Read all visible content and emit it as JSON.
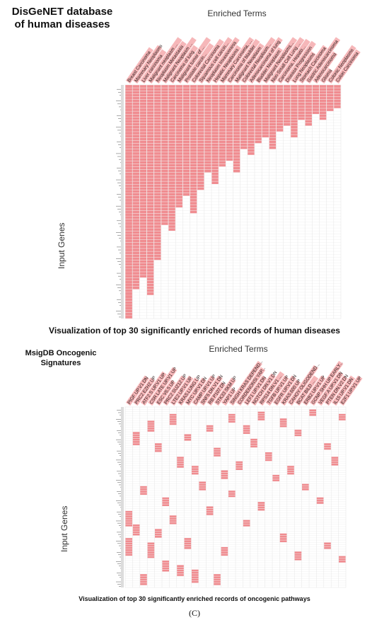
{
  "panel_label": "(C)",
  "chart_data": [
    {
      "type": "heatmap",
      "database_title": [
        "DisGeNET database",
        "of human diseases"
      ],
      "column_axis_title": "Enriched Terms",
      "row_axis_title": "Input Genes",
      "caption": "Visualization of top 30 significantly enriched records of human diseases",
      "cell_color": "#f08c90",
      "empty_color": "#ffffff",
      "grid_color": "#e6e6e6",
      "n_rows": 80,
      "columns": [
        "Breast Carcinoma",
        "Mammary Neoplasms",
        "Liver carcinoma",
        "Malignant neoplasm ...",
        "Neoplasm Metastasis",
        "Malignant Neoplasm ...",
        "Carcinoma of lung",
        "Malignant tumor of ...",
        "Prostate carcin...",
        "Colorectal Carcinoma",
        "Squamous cell carcin...",
        "Neoplasm Invasiveness",
        "Hepatic Neoplasms",
        "Mammary Carcinoma, ...",
        "Carcinoma of bladder",
        "Malignant Neoplasm",
        "Colorectal Neoplasm...",
        "Adenocarcinoma of lung",
        "Bladder Neoplasm",
        "Malignant Neoplasms...",
        "Non-Small Cell Lung ...",
        "Carcinoma, Hepato...",
        "Disease Progression",
        "Lung Neoplasms",
        "Stomach Carcinoma",
        "Gastric Adenocarcinoma",
        "Adenocarcinoma",
        "Glioma",
        "Colonic Neoplasms",
        "Colon Carcinoma"
      ],
      "active_cells": [
        [
          0,
          0,
          80
        ],
        [
          1,
          0,
          70
        ],
        [
          2,
          0,
          66
        ],
        [
          3,
          0,
          72
        ],
        [
          4,
          0,
          60
        ],
        [
          5,
          0,
          48
        ],
        [
          6,
          0,
          50
        ],
        [
          7,
          0,
          42
        ],
        [
          8,
          0,
          38
        ],
        [
          9,
          0,
          44
        ],
        [
          10,
          0,
          36
        ],
        [
          11,
          0,
          30
        ],
        [
          12,
          0,
          34
        ],
        [
          13,
          0,
          28
        ],
        [
          14,
          0,
          26
        ],
        [
          15,
          0,
          30
        ],
        [
          16,
          0,
          22
        ],
        [
          17,
          0,
          24
        ],
        [
          18,
          0,
          20
        ],
        [
          19,
          0,
          18
        ],
        [
          20,
          0,
          22
        ],
        [
          21,
          0,
          16
        ],
        [
          22,
          0,
          14
        ],
        [
          23,
          0,
          18
        ],
        [
          24,
          0,
          12
        ],
        [
          25,
          0,
          14
        ],
        [
          26,
          0,
          10
        ],
        [
          27,
          0,
          12
        ],
        [
          28,
          0,
          9
        ],
        [
          29,
          0,
          8
        ],
        [
          0,
          0,
          80
        ]
      ]
    },
    {
      "type": "heatmap",
      "database_title": [
        "MsigDB Oncogenic",
        "Signatures"
      ],
      "column_axis_title": "Enriched Terms",
      "row_axis_title": "Input Genes",
      "caption": "Visualization of top 30 significantly enriched records of oncogenic pathways",
      "cell_color": "#f08c90",
      "empty_color": "#ffffff",
      "grid_color": "#e6e6e6",
      "n_rows": 80,
      "columns": [
        "PIGF UP.V1 DN",
        "PRC2 EZH2 UP",
        "ATF2 S UP.V1 UP",
        "CSR LATE UP.V1 UP",
        "ESC V6.5 UP",
        "PRC2 SUZ12 UP",
        "LTE2 UP.V1 UP",
        "KRAS.LUNG UP",
        "MYC UP.V1 DN",
        "CAMP UP.V1 UP",
        "SNF5 DN.V1 DN",
        "RB P107 DN",
        "STK33 SKM UP",
        "YAP1 UP",
        "SINGH KRAS DEPEND...",
        "CORDENONSI YAP...",
        "LEF1 UP.V1 DN",
        "NOTCH DN.V1 DN",
        "RPS14 DN.V1 ...",
        "TGFB UP.V1 UP",
        "EGFR UP.V1 DN",
        "KRAS.600 UP",
        "CAHOY OLIGODEND...",
        "BCAT BILD ...",
        "ERB2 UP.V1 UP",
        "GCNP SHH UP EARLY...",
        "VEGF A UP.V1 DN",
        "PTEN DN.V2 DN",
        "IL15 UP.V1 DN",
        "E2F1 UP.V1 UP"
      ],
      "active_cells": [
        [
          0,
          46,
          53
        ],
        [
          0,
          58,
          66
        ],
        [
          1,
          11,
          17
        ],
        [
          1,
          52,
          57
        ],
        [
          2,
          35,
          39
        ],
        [
          3,
          6,
          11
        ],
        [
          3,
          60,
          67
        ],
        [
          4,
          16,
          20
        ],
        [
          4,
          54,
          58
        ],
        [
          5,
          40,
          44
        ],
        [
          6,
          3,
          8
        ],
        [
          6,
          48,
          52
        ],
        [
          7,
          22,
          27
        ],
        [
          7,
          70,
          75
        ],
        [
          8,
          12,
          15
        ],
        [
          8,
          58,
          63
        ],
        [
          9,
          26,
          30
        ],
        [
          10,
          33,
          37
        ],
        [
          11,
          8,
          11
        ],
        [
          11,
          44,
          48
        ],
        [
          12,
          18,
          22
        ],
        [
          13,
          28,
          32
        ],
        [
          13,
          62,
          66
        ],
        [
          14,
          3,
          7
        ],
        [
          14,
          37,
          40
        ],
        [
          15,
          24,
          28
        ],
        [
          16,
          50,
          53
        ],
        [
          17,
          14,
          18
        ],
        [
          18,
          2,
          6
        ],
        [
          18,
          42,
          46
        ],
        [
          19,
          20,
          24
        ],
        [
          20,
          30,
          33
        ],
        [
          21,
          5,
          9
        ],
        [
          21,
          56,
          60
        ],
        [
          22,
          26,
          30
        ],
        [
          23,
          10,
          13
        ],
        [
          23,
          64,
          68
        ],
        [
          24,
          34,
          37
        ],
        [
          25,
          1,
          4
        ],
        [
          26,
          40,
          43
        ],
        [
          27,
          16,
          19
        ],
        [
          28,
          22,
          26
        ],
        [
          29,
          3,
          6
        ],
        [
          29,
          66,
          69
        ],
        [
          5,
          68,
          73
        ],
        [
          9,
          72,
          78
        ],
        [
          12,
          74,
          79
        ],
        [
          2,
          74,
          79
        ],
        [
          27,
          60,
          63
        ],
        [
          16,
          8,
          12
        ]
      ]
    }
  ]
}
